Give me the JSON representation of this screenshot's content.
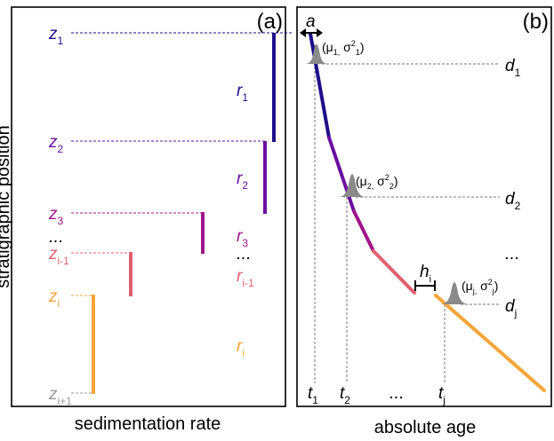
{
  "panel_a": {
    "letter": "(a)",
    "y_axis_label": "stratigraphic position",
    "x_axis_label": "sedimentation rate",
    "z_labels": [
      {
        "base": "z",
        "sub": "1",
        "color": "#1e0f8a"
      },
      {
        "base": "z",
        "sub": "2",
        "color": "#6a10a0"
      },
      {
        "base": "z",
        "sub": "3",
        "color": "#a0158a"
      },
      {
        "base": "z",
        "sub": "i-1",
        "color": "#e06070"
      },
      {
        "base": "z",
        "sub": "i",
        "color": "#f5a63a"
      },
      {
        "base": "z",
        "sub": "i+1",
        "color": "#999999"
      }
    ],
    "ellipsis_left": "...",
    "r_labels": [
      {
        "base": "r",
        "sub": "1",
        "color": "#1e0f8a"
      },
      {
        "base": "r",
        "sub": "2",
        "color": "#6a10a0"
      },
      {
        "base": "r",
        "sub": "3",
        "color": "#a0158a"
      },
      {
        "base": "r",
        "sub": "i-1",
        "color": "#e06070"
      },
      {
        "base": "r",
        "sub": "i",
        "color": "#f5a63a"
      }
    ],
    "ellipsis_r": "..."
  },
  "panel_b": {
    "letter": "(b)",
    "x_axis_label": "absolute age",
    "a_label": "a",
    "h_label": {
      "base": "h",
      "sub": "i"
    },
    "gaussians": [
      {
        "mu": "μ",
        "mu_sub": "1,",
        "sigma": "σ",
        "sigma_sup": "2",
        "sigma_sub": "1"
      },
      {
        "mu": "μ",
        "mu_sub": "2,",
        "sigma": "σ",
        "sigma_sup": "2",
        "sigma_sub": "2"
      },
      {
        "mu": "μ",
        "mu_sub": "j,",
        "sigma": "σ",
        "sigma_sup": "2",
        "sigma_sub": "j"
      }
    ],
    "d_labels": [
      {
        "base": "d",
        "sub": "1"
      },
      {
        "base": "d",
        "sub": "2"
      },
      {
        "base": "d",
        "sub": "j"
      }
    ],
    "ellipsis_d": "...",
    "t_labels": [
      {
        "base": "t",
        "sub": "1"
      },
      {
        "base": "t",
        "sub": "2"
      },
      {
        "base": "t",
        "sub": "j"
      }
    ],
    "ellipsis_t": "..."
  },
  "colors": {
    "dark_blue": "#1e0f8a",
    "purple": "#6a10a0",
    "magenta": "#a0158a",
    "salmon": "#e06070",
    "orange": "#f5a63a",
    "gray": "#777777"
  }
}
